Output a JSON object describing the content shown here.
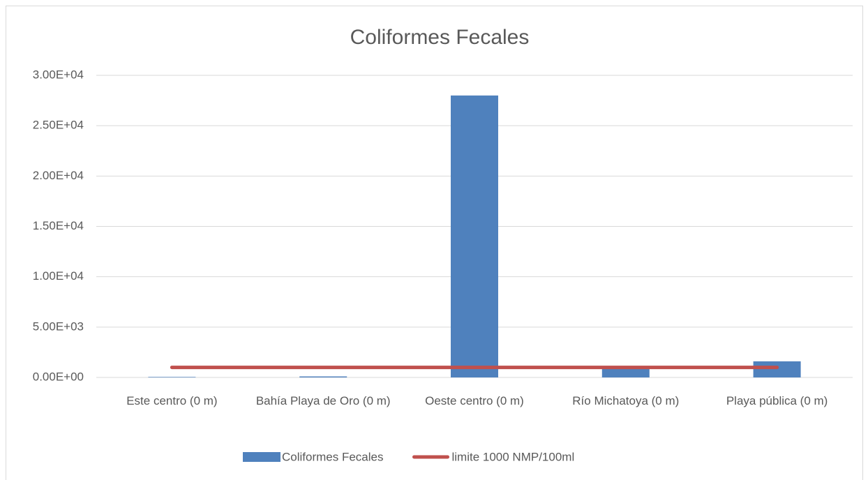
{
  "chart_data": {
    "type": "bar",
    "title": "Coliformes Fecales",
    "categories": [
      "Este centro (0 m)",
      "Bahía Playa de Oro (0 m)",
      "Oeste centro (0 m)",
      "Río Michatoya (0 m)",
      "Playa pública (0 m)"
    ],
    "series": [
      {
        "name": "Coliformes Fecales",
        "type": "bar",
        "color": "#4f81bd",
        "values": [
          50,
          100,
          28000,
          900,
          1600
        ]
      },
      {
        "name": "limite 1000 NMP/100ml",
        "type": "line",
        "color": "#c0504d",
        "values": [
          1000,
          1000,
          1000,
          1000,
          1000
        ]
      }
    ],
    "ylim": [
      0,
      30000
    ],
    "yticks": [
      {
        "value": 0,
        "label": "0.00E+00"
      },
      {
        "value": 5000,
        "label": "5.00E+03"
      },
      {
        "value": 10000,
        "label": "1.00E+04"
      },
      {
        "value": 15000,
        "label": "1.50E+04"
      },
      {
        "value": 20000,
        "label": "2.00E+04"
      },
      {
        "value": 25000,
        "label": "2.50E+04"
      },
      {
        "value": 30000,
        "label": "3.00E+04"
      }
    ],
    "grid": true,
    "legend": "bottom"
  }
}
